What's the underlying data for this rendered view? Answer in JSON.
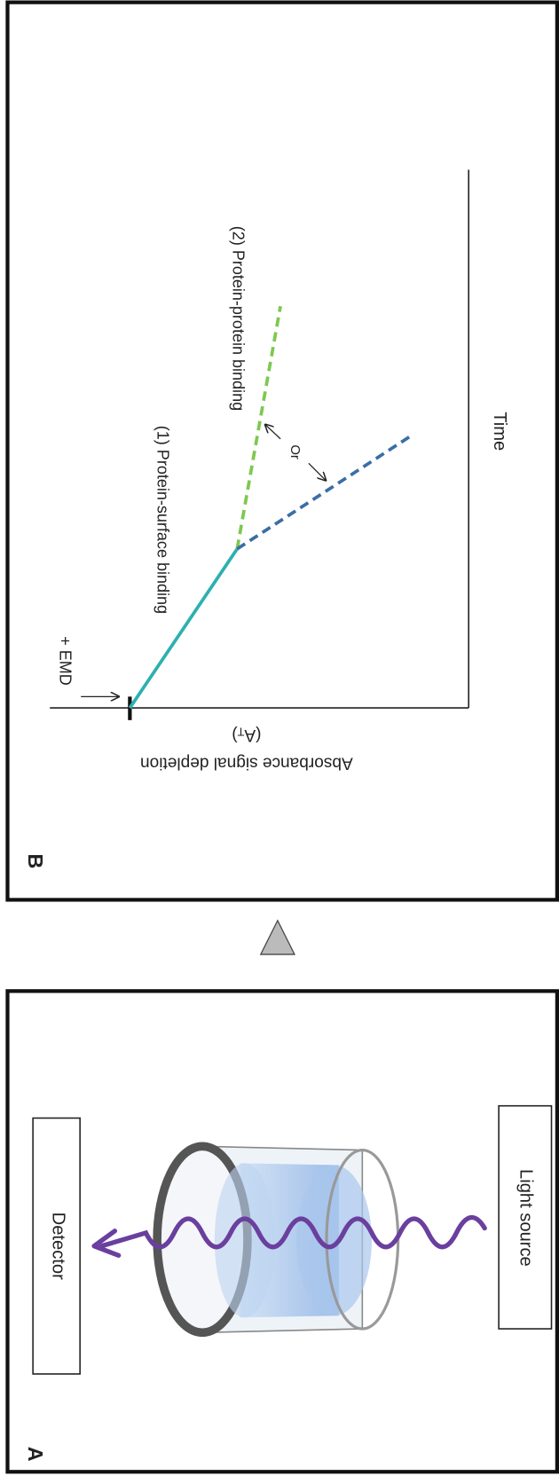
{
  "panel_b": {
    "label": "B",
    "y_axis_label": "Absorbance signal depletion",
    "y_axis_symbol": {
      "prefix": "(A",
      "subscript": "T",
      "suffix": ")"
    },
    "x_axis_label": "Time",
    "trigger": "+ EMD",
    "phase_1": "(1) Protein-surface binding",
    "phase_2": "(2) Protein-protein binding",
    "alternative": "Or"
  },
  "panel_a": {
    "label": "A",
    "detector": "Detector",
    "light_source": "Light source"
  }
}
